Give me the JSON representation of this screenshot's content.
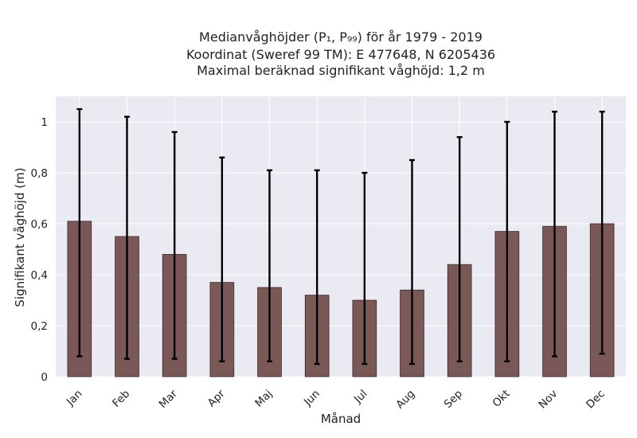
{
  "chart_data": {
    "type": "bar",
    "title_lines": [
      "Medianvåghöjder (P₁, P₉₉) för år 1979 - 2019",
      "Koordinat (Sweref 99 TM): E 477648, N 6205436",
      "Maximal beräknad signifikant våghöjd: 1,2 m"
    ],
    "xlabel": "Månad",
    "ylabel": "Signifikant våghöjd (m)",
    "categories": [
      "Jan",
      "Feb",
      "Mar",
      "Apr",
      "Maj",
      "Jun",
      "Jul",
      "Aug",
      "Sep",
      "Okt",
      "Nov",
      "Dec"
    ],
    "values": [
      0.61,
      0.55,
      0.48,
      0.37,
      0.35,
      0.32,
      0.3,
      0.34,
      0.44,
      0.57,
      0.59,
      0.6
    ],
    "p1": [
      0.08,
      0.07,
      0.07,
      0.06,
      0.06,
      0.05,
      0.05,
      0.05,
      0.06,
      0.06,
      0.08,
      0.09
    ],
    "p99": [
      1.05,
      1.02,
      0.96,
      0.86,
      0.81,
      0.81,
      0.8,
      0.85,
      0.94,
      1.0,
      1.04,
      1.04
    ],
    "yticks": [
      0,
      0.2,
      0.4,
      0.6,
      0.8,
      1
    ],
    "ytick_labels": [
      "0",
      "0,2",
      "0,4",
      "0,6",
      "0,8",
      "1"
    ],
    "ylim": [
      0,
      1.1
    ],
    "grid": true,
    "colors": {
      "bar_fill": "#7a5858",
      "bar_edge": "#3d2a2a",
      "error_bar": "#000000",
      "plot_background": "#eaeaf2",
      "grid": "#ffffff"
    }
  }
}
